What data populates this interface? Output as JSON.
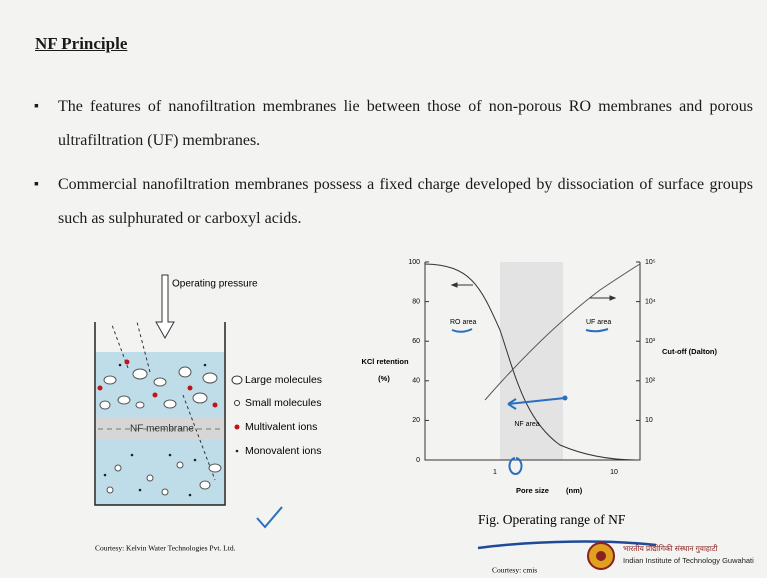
{
  "title": "NF Principle",
  "bullets": [
    "The features of nanofiltration membranes lie between those of non-porous RO membranes and porous ultrafiltration (UF) membranes.",
    "Commercial nanofiltration membranes possess a fixed charge developed by dissociation of surface groups such as sulphurated or carboxyl acids."
  ],
  "left_figure": {
    "pressure_label": "Operating pressure",
    "membrane_label": "NF membrane",
    "legend": [
      "Large molecules",
      "Small molecules",
      "Multivalent ions",
      "Monovalent ions"
    ],
    "courtesy": "Courtesy: Kelvin Water Technologies Pvt. Ltd."
  },
  "right_figure": {
    "y_label": "KCl retention",
    "y_unit": "(%)",
    "y_ticks": [
      "0",
      "20",
      "40",
      "60",
      "80",
      "100"
    ],
    "y2_label": "Cut-off (Dalton)",
    "y2_ticks": [
      "10",
      "10²",
      "10³",
      "10⁴",
      "10⁵"
    ],
    "x_label": "Pore size",
    "x_unit": "(nm)",
    "x_ticks": [
      "1",
      "10"
    ],
    "regions": [
      "RO area",
      "NF area",
      "UF area"
    ],
    "caption": "Fig. Operating range of NF",
    "courtesy": "Courtesy: cmis"
  },
  "footer": {
    "institute_hindi": "भारतीय प्रौद्योगिकी संस्थान गुवाहाटी",
    "institute": "Indian Institute of Technology Guwahati"
  }
}
